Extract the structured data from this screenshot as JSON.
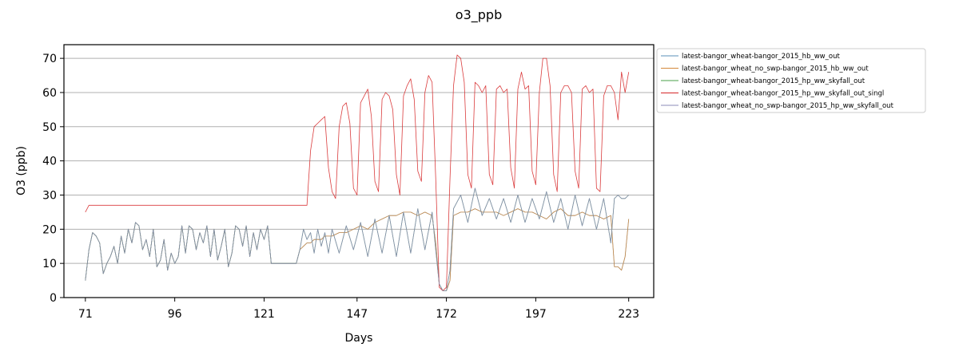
{
  "chart_data": {
    "type": "line",
    "title": "o3_ppb",
    "xlabel": "Days",
    "ylabel": "O3 (ppb)",
    "xlim": [
      65,
      230
    ],
    "ylim": [
      0,
      74
    ],
    "xticks": [
      71,
      96,
      121,
      147,
      172,
      197,
      223
    ],
    "yticks": [
      0,
      10,
      20,
      30,
      40,
      50,
      60,
      70
    ],
    "grid": "horizontal",
    "legend_placement": "outside-top-right",
    "series": [
      {
        "name": "latest-bangor_wheat-bangor_2015_hb_ww_out",
        "color": "#5a8fb8",
        "x": [
          71,
          72,
          73,
          74,
          75,
          76,
          77,
          78,
          79,
          80,
          81,
          82,
          83,
          84,
          85,
          86,
          87,
          88,
          89,
          90,
          91,
          92,
          93,
          94,
          95,
          96,
          97,
          98,
          99,
          100,
          101,
          102,
          103,
          104,
          105,
          106,
          107,
          108,
          109,
          110,
          111,
          112,
          113,
          114,
          115,
          116,
          117,
          118,
          119,
          120,
          121,
          122,
          123,
          124,
          125,
          126,
          127,
          128,
          129,
          130,
          131,
          132,
          133,
          134,
          135,
          136,
          137,
          138,
          139,
          140,
          142,
          144,
          146,
          148,
          150,
          152,
          154,
          156,
          158,
          160,
          162,
          164,
          166,
          168,
          169,
          170,
          171,
          172,
          173,
          174,
          176,
          178,
          180,
          182,
          184,
          186,
          188,
          190,
          192,
          194,
          196,
          198,
          200,
          202,
          204,
          206,
          208,
          210,
          212,
          214,
          216,
          218,
          219,
          220,
          221,
          222,
          223
        ],
        "y": [
          5,
          14,
          19,
          18,
          16,
          7,
          10,
          12,
          15,
          10,
          18,
          13,
          20,
          16,
          22,
          21,
          14,
          17,
          12,
          20,
          9,
          11,
          17,
          8,
          13,
          10,
          12,
          21,
          13,
          21,
          20,
          14,
          19,
          16,
          21,
          12,
          20,
          11,
          15,
          20,
          9,
          13,
          21,
          20,
          15,
          21,
          12,
          19,
          14,
          20,
          17,
          21,
          10,
          10,
          10,
          10,
          10,
          10,
          10,
          10,
          14,
          15,
          16,
          16,
          17,
          17,
          17,
          18,
          18,
          18,
          19,
          19,
          20,
          21,
          20,
          22,
          23,
          24,
          24,
          25,
          25,
          24,
          25,
          24,
          16,
          4,
          2,
          2,
          5,
          24,
          25,
          25,
          26,
          25,
          25,
          25,
          24,
          25,
          26,
          25,
          25,
          24,
          23,
          25,
          26,
          24,
          24,
          25,
          24,
          24,
          23,
          24,
          9,
          9,
          8,
          12,
          23
        ]
      },
      {
        "name": "latest-bangor_wheat_no_swp-bangor_2015_hb_ww_out",
        "color": "#d4883a",
        "x": [
          71,
          72,
          73,
          74,
          75,
          76,
          77,
          78,
          79,
          80,
          81,
          82,
          83,
          84,
          85,
          86,
          87,
          88,
          89,
          90,
          91,
          92,
          93,
          94,
          95,
          96,
          97,
          98,
          99,
          100,
          101,
          102,
          103,
          104,
          105,
          106,
          107,
          108,
          109,
          110,
          111,
          112,
          113,
          114,
          115,
          116,
          117,
          118,
          119,
          120,
          121,
          122,
          123,
          124,
          125,
          126,
          127,
          128,
          129,
          130,
          131,
          132,
          133,
          134,
          135,
          136,
          137,
          138,
          139,
          140,
          142,
          144,
          146,
          148,
          150,
          152,
          154,
          156,
          158,
          160,
          162,
          164,
          166,
          168,
          169,
          170,
          171,
          172,
          173,
          174,
          176,
          178,
          180,
          182,
          184,
          186,
          188,
          190,
          192,
          194,
          196,
          198,
          200,
          202,
          204,
          206,
          208,
          210,
          212,
          214,
          216,
          218,
          219,
          220,
          221,
          222,
          223
        ],
        "y": [
          5,
          14,
          19,
          18,
          16,
          7,
          10,
          12,
          15,
          10,
          18,
          13,
          20,
          16,
          22,
          21,
          14,
          17,
          12,
          20,
          9,
          11,
          17,
          8,
          13,
          10,
          12,
          21,
          13,
          21,
          20,
          14,
          19,
          16,
          21,
          12,
          20,
          11,
          15,
          20,
          9,
          13,
          21,
          20,
          15,
          21,
          12,
          19,
          14,
          20,
          17,
          21,
          10,
          10,
          10,
          10,
          10,
          10,
          10,
          10,
          14,
          15,
          16,
          16,
          17,
          17,
          17,
          18,
          18,
          18,
          19,
          19,
          20,
          21,
          20,
          22,
          23,
          24,
          24,
          25,
          25,
          24,
          25,
          24,
          16,
          4,
          2,
          2,
          5,
          24,
          25,
          25,
          26,
          25,
          25,
          25,
          24,
          25,
          26,
          25,
          25,
          24,
          23,
          25,
          26,
          24,
          24,
          25,
          24,
          24,
          23,
          24,
          9,
          9,
          8,
          12,
          23
        ]
      },
      {
        "name": "latest-bangor_wheat-bangor_2015_hp_ww_skyfall_out",
        "color": "#4aa04a",
        "x": [
          71,
          72,
          73,
          74,
          75,
          76,
          77,
          78,
          79,
          80,
          81,
          82,
          83,
          84,
          85,
          86,
          87,
          88,
          89,
          90,
          91,
          92,
          93,
          94,
          95,
          96,
          97,
          98,
          99,
          100,
          101,
          102,
          103,
          104,
          105,
          106,
          107,
          108,
          109,
          110,
          111,
          112,
          113,
          114,
          115,
          116,
          117,
          118,
          119,
          120,
          121,
          122,
          123,
          124,
          125,
          126,
          127,
          128,
          129,
          130,
          131,
          132,
          133,
          134,
          135,
          136,
          137,
          138,
          139,
          140,
          142,
          144,
          146,
          148,
          150,
          152,
          154,
          156,
          158,
          160,
          162,
          164,
          166,
          168,
          169,
          170,
          171,
          172,
          173,
          174,
          176,
          178,
          180,
          182,
          184,
          186,
          188,
          190,
          192,
          194,
          196,
          198,
          200,
          202,
          204,
          206,
          208,
          210,
          212,
          214,
          216,
          218,
          219,
          220,
          221,
          222,
          223
        ],
        "y": [
          5,
          14,
          19,
          18,
          16,
          7,
          10,
          12,
          15,
          10,
          18,
          13,
          20,
          16,
          22,
          21,
          14,
          17,
          12,
          20,
          9,
          11,
          17,
          8,
          13,
          10,
          12,
          21,
          13,
          21,
          20,
          14,
          19,
          16,
          21,
          12,
          20,
          11,
          15,
          20,
          9,
          13,
          21,
          20,
          15,
          21,
          12,
          19,
          14,
          20,
          17,
          21,
          10,
          10,
          10,
          10,
          10,
          10,
          10,
          10,
          14,
          20,
          17,
          19,
          13,
          20,
          15,
          19,
          13,
          20,
          13,
          21,
          14,
          22,
          12,
          23,
          13,
          24,
          12,
          25,
          13,
          26,
          14,
          25,
          14,
          4,
          2,
          2,
          8,
          26,
          30,
          22,
          32,
          24,
          29,
          23,
          29,
          22,
          30,
          22,
          29,
          23,
          31,
          22,
          29,
          20,
          30,
          21,
          29,
          20,
          29,
          16,
          29,
          30,
          29,
          29,
          30
        ]
      },
      {
        "name": "latest-bangor_wheat-bangor_2015_hp_ww_skyfall_out_singl",
        "color": "#d62728",
        "x": [
          71,
          72,
          80,
          90,
          100,
          110,
          120,
          130,
          133,
          134,
          135,
          136,
          137,
          138,
          139,
          140,
          141,
          142,
          143,
          144,
          145,
          146,
          147,
          148,
          149,
          150,
          151,
          152,
          153,
          154,
          155,
          156,
          157,
          158,
          159,
          160,
          161,
          162,
          163,
          164,
          165,
          166,
          167,
          168,
          169,
          170,
          171,
          172,
          173,
          174,
          175,
          176,
          177,
          178,
          179,
          180,
          181,
          182,
          183,
          184,
          185,
          186,
          187,
          188,
          189,
          190,
          191,
          192,
          193,
          194,
          195,
          196,
          197,
          198,
          199,
          200,
          201,
          202,
          203,
          204,
          205,
          206,
          207,
          208,
          209,
          210,
          211,
          212,
          213,
          214,
          215,
          216,
          217,
          218,
          219,
          220,
          221,
          222,
          223
        ],
        "y": [
          25,
          27,
          27,
          27,
          27,
          27,
          27,
          27,
          27,
          43,
          50,
          51,
          52,
          53,
          38,
          31,
          29,
          50,
          56,
          57,
          51,
          32,
          30,
          57,
          59,
          61,
          53,
          34,
          31,
          58,
          60,
          59,
          55,
          36,
          30,
          59,
          62,
          64,
          58,
          37,
          34,
          60,
          65,
          63,
          35,
          3,
          2,
          3,
          35,
          62,
          71,
          70,
          63,
          36,
          32,
          63,
          62,
          60,
          62,
          36,
          33,
          61,
          62,
          60,
          61,
          38,
          32,
          61,
          66,
          61,
          62,
          37,
          33,
          60,
          70,
          70,
          62,
          36,
          31,
          60,
          62,
          62,
          60,
          37,
          32,
          61,
          62,
          60,
          61,
          32,
          31,
          59,
          62,
          62,
          60,
          52,
          66,
          60,
          66
        ]
      },
      {
        "name": "latest-bangor_wheat_no_swp-bangor_2015_hp_ww_skyfall_out",
        "color": "#8b8bb8",
        "x": [
          71,
          72,
          73,
          74,
          75,
          76,
          77,
          78,
          79,
          80,
          81,
          82,
          83,
          84,
          85,
          86,
          87,
          88,
          89,
          90,
          91,
          92,
          93,
          94,
          95,
          96,
          97,
          98,
          99,
          100,
          101,
          102,
          103,
          104,
          105,
          106,
          107,
          108,
          109,
          110,
          111,
          112,
          113,
          114,
          115,
          116,
          117,
          118,
          119,
          120,
          121,
          122,
          123,
          124,
          125,
          126,
          127,
          128,
          129,
          130,
          131,
          132,
          133,
          134,
          135,
          136,
          137,
          138,
          139,
          140,
          142,
          144,
          146,
          148,
          150,
          152,
          154,
          156,
          158,
          160,
          162,
          164,
          166,
          168,
          169,
          170,
          171,
          172,
          173,
          174,
          176,
          178,
          180,
          182,
          184,
          186,
          188,
          190,
          192,
          194,
          196,
          198,
          200,
          202,
          204,
          206,
          208,
          210,
          212,
          214,
          216,
          218,
          219,
          220,
          221,
          222,
          223
        ],
        "y": [
          5,
          14,
          19,
          18,
          16,
          7,
          10,
          12,
          15,
          10,
          18,
          13,
          20,
          16,
          22,
          21,
          14,
          17,
          12,
          20,
          9,
          11,
          17,
          8,
          13,
          10,
          12,
          21,
          13,
          21,
          20,
          14,
          19,
          16,
          21,
          12,
          20,
          11,
          15,
          20,
          9,
          13,
          21,
          20,
          15,
          21,
          12,
          19,
          14,
          20,
          17,
          21,
          10,
          10,
          10,
          10,
          10,
          10,
          10,
          10,
          14,
          20,
          17,
          19,
          13,
          20,
          15,
          19,
          13,
          20,
          13,
          21,
          14,
          22,
          12,
          23,
          13,
          24,
          12,
          25,
          13,
          26,
          14,
          25,
          14,
          4,
          2,
          2,
          8,
          26,
          30,
          22,
          32,
          24,
          29,
          23,
          29,
          22,
          30,
          22,
          29,
          23,
          31,
          22,
          29,
          20,
          30,
          21,
          29,
          20,
          29,
          16,
          29,
          30,
          29,
          29,
          30
        ]
      }
    ]
  }
}
